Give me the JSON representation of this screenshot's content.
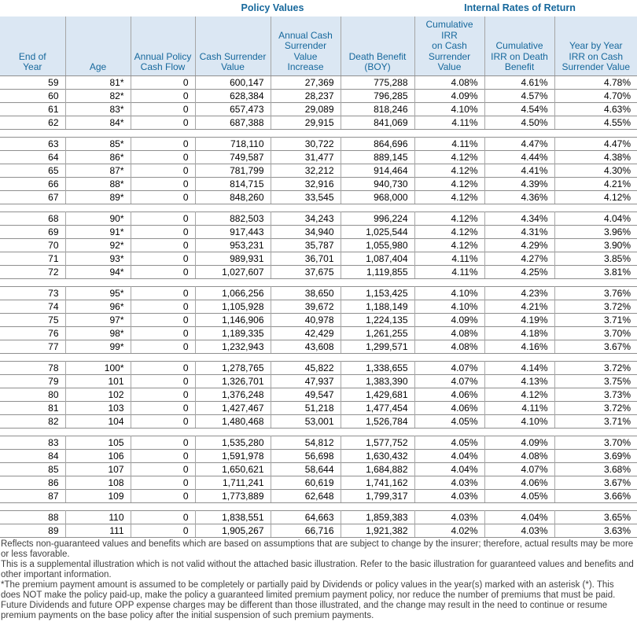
{
  "group_titles": {
    "policy_values": "Policy Values",
    "internal_rates": "Internal Rates of Return"
  },
  "columns": [
    {
      "key": "end-of-year",
      "label": "End of\nYear"
    },
    {
      "key": "age",
      "label": "Age"
    },
    {
      "key": "annual-policy-cash-flow",
      "label": "Annual Policy\nCash Flow"
    },
    {
      "key": "cash-surrender-value",
      "label": "Cash Surrender\nValue"
    },
    {
      "key": "annual-csv-increase",
      "label": "Annual Cash\nSurrender Value\nIncrease"
    },
    {
      "key": "death-benefit-boy",
      "label": "Death Benefit\n(BOY)"
    },
    {
      "key": "cumulative-irr-csv",
      "label": "Cumulative IRR\non Cash\nSurrender Value"
    },
    {
      "key": "cumulative-irr-death-benefit",
      "label": "Cumulative\nIRR on Death\nBenefit"
    },
    {
      "key": "year-by-year-irr-csv",
      "label": "Year by Year\nIRR on Cash\nSurrender Value"
    }
  ],
  "blocks": [
    [
      [
        "59",
        "81*",
        "0",
        "600,147",
        "27,369",
        "775,288",
        "4.08%",
        "4.61%",
        "4.78%"
      ],
      [
        "60",
        "82*",
        "0",
        "628,384",
        "28,237",
        "796,285",
        "4.09%",
        "4.57%",
        "4.70%"
      ],
      [
        "61",
        "83*",
        "0",
        "657,473",
        "29,089",
        "818,246",
        "4.10%",
        "4.54%",
        "4.63%"
      ],
      [
        "62",
        "84*",
        "0",
        "687,388",
        "29,915",
        "841,069",
        "4.11%",
        "4.50%",
        "4.55%"
      ]
    ],
    [
      [
        "63",
        "85*",
        "0",
        "718,110",
        "30,722",
        "864,696",
        "4.11%",
        "4.47%",
        "4.47%"
      ],
      [
        "64",
        "86*",
        "0",
        "749,587",
        "31,477",
        "889,145",
        "4.12%",
        "4.44%",
        "4.38%"
      ],
      [
        "65",
        "87*",
        "0",
        "781,799",
        "32,212",
        "914,464",
        "4.12%",
        "4.41%",
        "4.30%"
      ],
      [
        "66",
        "88*",
        "0",
        "814,715",
        "32,916",
        "940,730",
        "4.12%",
        "4.39%",
        "4.21%"
      ],
      [
        "67",
        "89*",
        "0",
        "848,260",
        "33,545",
        "968,000",
        "4.12%",
        "4.36%",
        "4.12%"
      ]
    ],
    [
      [
        "68",
        "90*",
        "0",
        "882,503",
        "34,243",
        "996,224",
        "4.12%",
        "4.34%",
        "4.04%"
      ],
      [
        "69",
        "91*",
        "0",
        "917,443",
        "34,940",
        "1,025,544",
        "4.12%",
        "4.31%",
        "3.96%"
      ],
      [
        "70",
        "92*",
        "0",
        "953,231",
        "35,787",
        "1,055,980",
        "4.12%",
        "4.29%",
        "3.90%"
      ],
      [
        "71",
        "93*",
        "0",
        "989,931",
        "36,701",
        "1,087,404",
        "4.11%",
        "4.27%",
        "3.85%"
      ],
      [
        "72",
        "94*",
        "0",
        "1,027,607",
        "37,675",
        "1,119,855",
        "4.11%",
        "4.25%",
        "3.81%"
      ]
    ],
    [
      [
        "73",
        "95*",
        "0",
        "1,066,256",
        "38,650",
        "1,153,425",
        "4.10%",
        "4.23%",
        "3.76%"
      ],
      [
        "74",
        "96*",
        "0",
        "1,105,928",
        "39,672",
        "1,188,149",
        "4.10%",
        "4.21%",
        "3.72%"
      ],
      [
        "75",
        "97*",
        "0",
        "1,146,906",
        "40,978",
        "1,224,135",
        "4.09%",
        "4.19%",
        "3.71%"
      ],
      [
        "76",
        "98*",
        "0",
        "1,189,335",
        "42,429",
        "1,261,255",
        "4.08%",
        "4.18%",
        "3.70%"
      ],
      [
        "77",
        "99*",
        "0",
        "1,232,943",
        "43,608",
        "1,299,571",
        "4.08%",
        "4.16%",
        "3.67%"
      ]
    ],
    [
      [
        "78",
        "100*",
        "0",
        "1,278,765",
        "45,822",
        "1,338,655",
        "4.07%",
        "4.14%",
        "3.72%"
      ],
      [
        "79",
        "101",
        "0",
        "1,326,701",
        "47,937",
        "1,383,390",
        "4.07%",
        "4.13%",
        "3.75%"
      ],
      [
        "80",
        "102",
        "0",
        "1,376,248",
        "49,547",
        "1,429,681",
        "4.06%",
        "4.12%",
        "3.73%"
      ],
      [
        "81",
        "103",
        "0",
        "1,427,467",
        "51,218",
        "1,477,454",
        "4.06%",
        "4.11%",
        "3.72%"
      ],
      [
        "82",
        "104",
        "0",
        "1,480,468",
        "53,001",
        "1,526,784",
        "4.05%",
        "4.10%",
        "3.71%"
      ]
    ],
    [
      [
        "83",
        "105",
        "0",
        "1,535,280",
        "54,812",
        "1,577,752",
        "4.05%",
        "4.09%",
        "3.70%"
      ],
      [
        "84",
        "106",
        "0",
        "1,591,978",
        "56,698",
        "1,630,432",
        "4.04%",
        "4.08%",
        "3.69%"
      ],
      [
        "85",
        "107",
        "0",
        "1,650,621",
        "58,644",
        "1,684,882",
        "4.04%",
        "4.07%",
        "3.68%"
      ],
      [
        "86",
        "108",
        "0",
        "1,711,241",
        "60,619",
        "1,741,162",
        "4.03%",
        "4.06%",
        "3.67%"
      ],
      [
        "87",
        "109",
        "0",
        "1,773,889",
        "62,648",
        "1,799,317",
        "4.03%",
        "4.05%",
        "3.66%"
      ]
    ],
    [
      [
        "88",
        "110",
        "0",
        "1,838,551",
        "64,663",
        "1,859,383",
        "4.03%",
        "4.04%",
        "3.65%"
      ],
      [
        "89",
        "111",
        "0",
        "1,905,267",
        "66,716",
        "1,921,382",
        "4.02%",
        "4.03%",
        "3.63%"
      ]
    ]
  ],
  "footnotes": [
    "Reflects non-guaranteed values and benefits which are based on assumptions that are subject to change by the insurer; therefore, actual results may be more or less favorable.",
    "This is a supplemental illustration which is not valid without the attached basic illustration.  Refer to the basic illustration for guaranteed values and benefits and other important information.",
    "*The premium payment amount is assumed to be completely or partially paid by Dividends or policy values in the year(s) marked with an asterisk (*). This does NOT make the policy paid-up, make the policy a guaranteed limited premium payment policy, nor reduce the number of premiums that must be paid.  Future Dividends and future OPP expense charges may be different than those illustrated, and the change may result in the need to continue or resume premium payments on the base policy after the initial suspension of such premium payments."
  ],
  "colors": {
    "header_bg": "#dbe7f3",
    "header_text": "#16689c",
    "grid_horizontal": "#8f8f8f",
    "grid_vertical": "#a6a6a6",
    "footnote_text": "#3f3f3f"
  }
}
